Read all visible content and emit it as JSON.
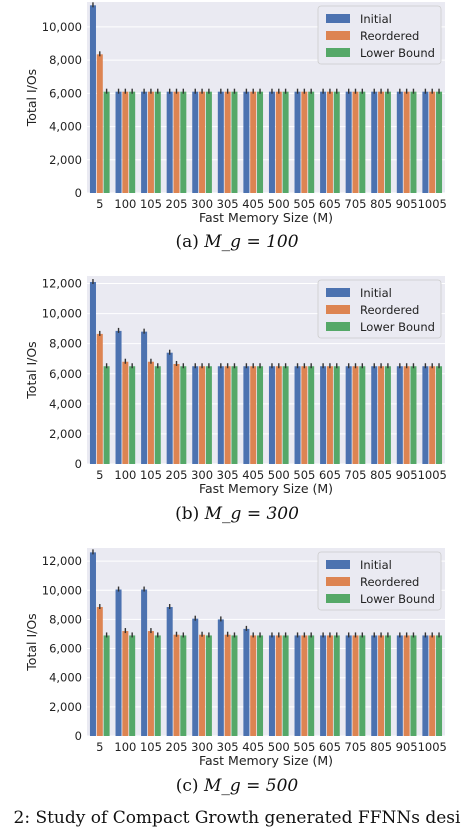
{
  "captions": [
    {
      "label": "(a)",
      "math": "M_g = 100"
    },
    {
      "label": "(b)",
      "math": "M_g = 300"
    },
    {
      "label": "(c)",
      "math": "M_g = 500"
    }
  ],
  "bottom_caption_fragment": "2: Study of Compact Growth generated FFNNs desi",
  "colors": {
    "initial": "#4c72b0",
    "reordered": "#dd8452",
    "lower_bound": "#55a868",
    "grid": "#eaeaf2"
  },
  "chart_data": [
    {
      "type": "bar",
      "xlabel": "Fast Memory Size (M)",
      "ylabel": "Total I/Os",
      "ylim": [
        0,
        11500
      ],
      "yticks": [
        0,
        2000,
        4000,
        6000,
        8000,
        10000
      ],
      "ytick_labels": [
        "0",
        "2,000",
        "4,000",
        "6,000",
        "8,000",
        "10,000"
      ],
      "categories": [
        "5",
        "100",
        "105",
        "205",
        "300",
        "305",
        "405",
        "500",
        "505",
        "605",
        "705",
        "805",
        "905",
        "1005"
      ],
      "legend": "top-right",
      "grid": true,
      "series": [
        {
          "name": "Initial",
          "values": [
            11300,
            6100,
            6100,
            6100,
            6100,
            6100,
            6100,
            6100,
            6100,
            6100,
            6100,
            6100,
            6100,
            6100
          ]
        },
        {
          "name": "Reordered",
          "values": [
            8350,
            6100,
            6100,
            6100,
            6100,
            6100,
            6100,
            6100,
            6100,
            6100,
            6100,
            6100,
            6100,
            6100
          ]
        },
        {
          "name": "Lower Bound",
          "values": [
            6100,
            6100,
            6100,
            6100,
            6100,
            6100,
            6100,
            6100,
            6100,
            6100,
            6100,
            6100,
            6100,
            6100
          ]
        }
      ]
    },
    {
      "type": "bar",
      "xlabel": "Fast Memory Size (M)",
      "ylabel": "Total I/Os",
      "ylim": [
        0,
        12500
      ],
      "yticks": [
        0,
        2000,
        4000,
        6000,
        8000,
        10000,
        12000
      ],
      "ytick_labels": [
        "0",
        "2,000",
        "4,000",
        "6,000",
        "8,000",
        "10,000",
        "12,000"
      ],
      "categories": [
        "5",
        "100",
        "105",
        "205",
        "300",
        "305",
        "405",
        "500",
        "505",
        "605",
        "705",
        "805",
        "905",
        "1005"
      ],
      "legend": "top-right",
      "grid": true,
      "series": [
        {
          "name": "Initial",
          "values": [
            12100,
            8850,
            8800,
            7400,
            6500,
            6500,
            6500,
            6500,
            6500,
            6500,
            6500,
            6500,
            6500,
            6500
          ]
        },
        {
          "name": "Reordered",
          "values": [
            8650,
            6800,
            6800,
            6650,
            6500,
            6500,
            6500,
            6500,
            6500,
            6500,
            6500,
            6500,
            6500,
            6500
          ]
        },
        {
          "name": "Lower Bound",
          "values": [
            6500,
            6500,
            6500,
            6500,
            6500,
            6500,
            6500,
            6500,
            6500,
            6500,
            6500,
            6500,
            6500,
            6500
          ]
        }
      ]
    },
    {
      "type": "bar",
      "xlabel": "Fast Memory Size (M)",
      "ylabel": "Total I/Os",
      "ylim": [
        0,
        12900
      ],
      "yticks": [
        0,
        2000,
        4000,
        6000,
        8000,
        10000,
        12000
      ],
      "ytick_labels": [
        "0",
        "2,000",
        "4,000",
        "6,000",
        "8,000",
        "10,000",
        "12,000"
      ],
      "categories": [
        "5",
        "100",
        "105",
        "205",
        "300",
        "305",
        "405",
        "500",
        "505",
        "605",
        "705",
        "805",
        "905",
        "1005"
      ],
      "legend": "top-right",
      "grid": true,
      "series": [
        {
          "name": "Initial",
          "values": [
            12600,
            10050,
            10050,
            8850,
            8050,
            8000,
            7350,
            6900,
            6900,
            6900,
            6900,
            6900,
            6900,
            6900
          ]
        },
        {
          "name": "Reordered",
          "values": [
            8850,
            7200,
            7200,
            6950,
            6950,
            6950,
            6900,
            6900,
            6900,
            6900,
            6900,
            6900,
            6900,
            6900
          ]
        },
        {
          "name": "Lower Bound",
          "values": [
            6900,
            6900,
            6900,
            6900,
            6900,
            6900,
            6900,
            6900,
            6900,
            6900,
            6900,
            6900,
            6900,
            6900
          ]
        }
      ]
    }
  ]
}
